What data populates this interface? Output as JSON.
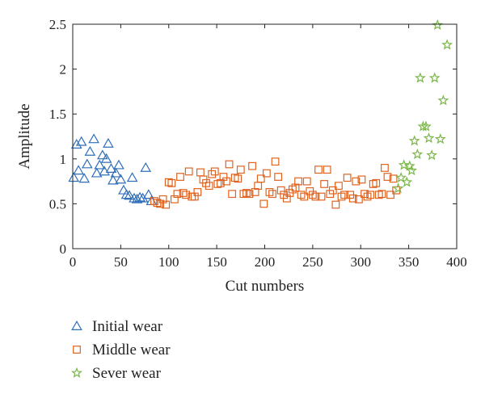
{
  "chart_data": {
    "type": "scatter",
    "xlabel": "Cut numbers",
    "ylabel": "Amplitude",
    "xlim": [
      0,
      400
    ],
    "ylim": [
      0,
      2.5
    ],
    "xticks": [
      0,
      50,
      100,
      150,
      200,
      250,
      300,
      350,
      400
    ],
    "yticks": [
      0,
      0.5,
      1,
      1.5,
      2,
      2.5
    ],
    "grid": false,
    "legend_position": "bottom-left, below plot",
    "series": [
      {
        "name": "Initial wear",
        "marker": "triangle",
        "color": "#2f6fba",
        "points": [
          [
            1,
            0.79
          ],
          [
            4,
            1.16
          ],
          [
            6,
            0.87
          ],
          [
            9,
            1.19
          ],
          [
            12,
            0.78
          ],
          [
            15,
            0.94
          ],
          [
            18,
            1.08
          ],
          [
            22,
            1.22
          ],
          [
            25,
            0.84
          ],
          [
            28,
            0.93
          ],
          [
            31,
            1.04
          ],
          [
            33,
            0.86
          ],
          [
            35,
            1.0
          ],
          [
            37,
            1.17
          ],
          [
            40,
            0.89
          ],
          [
            42,
            0.76
          ],
          [
            45,
            0.84
          ],
          [
            48,
            0.93
          ],
          [
            50,
            0.77
          ],
          [
            53,
            0.65
          ],
          [
            56,
            0.6
          ],
          [
            59,
            0.59
          ],
          [
            62,
            0.79
          ],
          [
            64,
            0.56
          ],
          [
            67,
            0.55
          ],
          [
            70,
            0.57
          ],
          [
            73,
            0.56
          ],
          [
            76,
            0.9
          ],
          [
            79,
            0.6
          ],
          [
            82,
            0.53
          ]
        ]
      },
      {
        "name": "Middle wear",
        "marker": "square",
        "color": "#e0631f",
        "points": [
          [
            85,
            0.53
          ],
          [
            88,
            0.51
          ],
          [
            91,
            0.5
          ],
          [
            94,
            0.55
          ],
          [
            97,
            0.49
          ],
          [
            100,
            0.74
          ],
          [
            103,
            0.73
          ],
          [
            106,
            0.55
          ],
          [
            109,
            0.61
          ],
          [
            112,
            0.8
          ],
          [
            115,
            0.62
          ],
          [
            118,
            0.6
          ],
          [
            121,
            0.86
          ],
          [
            124,
            0.58
          ],
          [
            127,
            0.58
          ],
          [
            130,
            0.63
          ],
          [
            133,
            0.85
          ],
          [
            136,
            0.77
          ],
          [
            139,
            0.73
          ],
          [
            142,
            0.7
          ],
          [
            145,
            0.83
          ],
          [
            148,
            0.86
          ],
          [
            151,
            0.72
          ],
          [
            154,
            0.73
          ],
          [
            157,
            0.8
          ],
          [
            160,
            0.75
          ],
          [
            163,
            0.94
          ],
          [
            166,
            0.61
          ],
          [
            169,
            0.79
          ],
          [
            172,
            0.78
          ],
          [
            175,
            0.88
          ],
          [
            178,
            0.61
          ],
          [
            181,
            0.62
          ],
          [
            184,
            0.61
          ],
          [
            187,
            0.92
          ],
          [
            190,
            0.63
          ],
          [
            193,
            0.7
          ],
          [
            196,
            0.78
          ],
          [
            199,
            0.5
          ],
          [
            202,
            0.84
          ],
          [
            205,
            0.63
          ],
          [
            208,
            0.61
          ],
          [
            211,
            0.97
          ],
          [
            214,
            0.8
          ],
          [
            217,
            0.65
          ],
          [
            220,
            0.6
          ],
          [
            223,
            0.56
          ],
          [
            226,
            0.62
          ],
          [
            229,
            0.66
          ],
          [
            232,
            0.68
          ],
          [
            235,
            0.75
          ],
          [
            238,
            0.6
          ],
          [
            241,
            0.58
          ],
          [
            244,
            0.75
          ],
          [
            247,
            0.64
          ],
          [
            250,
            0.6
          ],
          [
            253,
            0.58
          ],
          [
            256,
            0.88
          ],
          [
            259,
            0.58
          ],
          [
            262,
            0.72
          ],
          [
            265,
            0.88
          ],
          [
            268,
            0.61
          ],
          [
            271,
            0.65
          ],
          [
            274,
            0.49
          ],
          [
            277,
            0.7
          ],
          [
            280,
            0.58
          ],
          [
            283,
            0.6
          ],
          [
            286,
            0.79
          ],
          [
            289,
            0.6
          ],
          [
            292,
            0.56
          ],
          [
            295,
            0.75
          ],
          [
            298,
            0.55
          ],
          [
            301,
            0.77
          ],
          [
            304,
            0.61
          ],
          [
            307,
            0.58
          ],
          [
            310,
            0.6
          ],
          [
            313,
            0.72
          ],
          [
            316,
            0.73
          ],
          [
            319,
            0.6
          ],
          [
            322,
            0.61
          ],
          [
            325,
            0.9
          ],
          [
            328,
            0.8
          ],
          [
            331,
            0.6
          ],
          [
            334,
            0.78
          ],
          [
            337,
            0.65
          ]
        ]
      },
      {
        "name": "Sever wear",
        "marker": "star",
        "color": "#7ab648",
        "points": [
          [
            339,
            0.67
          ],
          [
            342,
            0.79
          ],
          [
            345,
            0.93
          ],
          [
            348,
            0.74
          ],
          [
            351,
            0.92
          ],
          [
            353,
            0.87
          ],
          [
            356,
            1.2
          ],
          [
            359,
            1.05
          ],
          [
            362,
            1.9
          ],
          [
            365,
            1.36
          ],
          [
            368,
            1.36
          ],
          [
            371,
            1.23
          ],
          [
            374,
            1.04
          ],
          [
            377,
            1.9
          ],
          [
            380,
            2.49
          ],
          [
            383,
            1.22
          ],
          [
            386,
            1.65
          ],
          [
            390,
            2.27
          ]
        ]
      }
    ]
  }
}
